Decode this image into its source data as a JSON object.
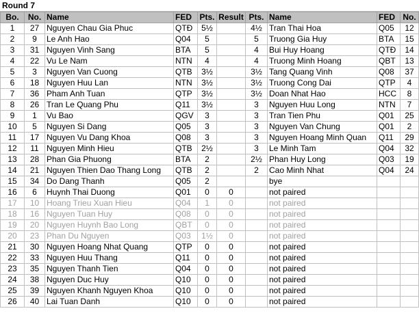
{
  "header": {
    "title": "Round 7"
  },
  "table": {
    "columns": [
      "Bo.",
      "No.",
      "Name",
      "FED",
      "Pts.",
      "Result",
      "Pts.",
      "Name",
      "FED",
      "No."
    ],
    "rows": [
      [
        "1",
        "27",
        "Nguyen Chau Gia Phuc",
        "QTĐ",
        "5½",
        null,
        "4½",
        "Tran Thai Hoa",
        "Q05",
        "12"
      ],
      [
        "2",
        "9",
        "Le Anh Hao",
        "Q04",
        "5",
        null,
        "5",
        "Truong Gia Huy",
        "BTA",
        "15"
      ],
      [
        "3",
        "31",
        "Nguyen Vinh Sang",
        "BTA",
        "5",
        null,
        "4",
        "Bui Huy Hoang",
        "QTĐ",
        "14"
      ],
      [
        "4",
        "22",
        "Vu Le Nam",
        "NTN",
        "4",
        null,
        "4",
        "Truong Minh Hoang",
        "QBT",
        "13"
      ],
      [
        "5",
        "3",
        "Nguyen Van Cuong",
        "QTB",
        "3½",
        null,
        "3½",
        "Tang Quang Vinh",
        "Q08",
        "37"
      ],
      [
        "6",
        "18",
        "Nguyen Huu Lan",
        "NTN",
        "3½",
        null,
        "3½",
        "Truong Cong Dai",
        "QTP",
        "4"
      ],
      [
        "7",
        "36",
        "Pham Anh Tuan",
        "QTP",
        "3½",
        null,
        "3½",
        "Doan Nhat Hao",
        "HCC",
        "8"
      ],
      [
        "8",
        "26",
        "Tran Le Quang Phu",
        "Q11",
        "3½",
        null,
        "3",
        "Nguyen Huu Long",
        "NTN",
        "7"
      ],
      [
        "9",
        "1",
        "Vu Bao",
        "QGV",
        "3",
        null,
        "3",
        "Tran Tien Phu",
        "Q01",
        "25"
      ],
      [
        "10",
        "5",
        "Nguyen Si Dang",
        "Q05",
        "3",
        null,
        "3",
        "Nguyen Van Chung",
        "Q01",
        "2"
      ],
      [
        "11",
        "17",
        "Nguyen Vu Dang Khoa",
        "Q08",
        "3",
        null,
        "3",
        "Nguyen Hoang Minh Quan",
        "Q11",
        "29"
      ],
      [
        "12",
        "11",
        "Nguyen Minh Hieu",
        "QTB",
        "2½",
        null,
        "3",
        "Le Minh Tam",
        "Q04",
        "32"
      ],
      [
        "13",
        "28",
        "Phan Gia Phuong",
        "BTA",
        "2",
        null,
        "2½",
        "Phan Huy Long",
        "Q03",
        "19"
      ],
      [
        "14",
        "21",
        "Nguyen Thien Dao Thang Long",
        "QTB",
        "2",
        null,
        "2",
        "Cao Minh Nhat",
        "Q04",
        "24"
      ],
      [
        "15",
        "34",
        "Do Dang Thanh",
        "Q05",
        "2",
        null,
        null,
        "bye",
        null,
        null
      ],
      [
        "16",
        "6",
        "Huynh Thai Duong",
        "Q01",
        "0",
        "0",
        null,
        "not paired",
        null,
        null
      ],
      [
        "17",
        "10",
        "Hoang Trieu Xuan Hieu",
        "Q04",
        "1",
        "0",
        null,
        "not paired",
        null,
        null
      ],
      [
        "18",
        "16",
        "Nguyen Tuan Huy",
        "Q08",
        "0",
        "0",
        null,
        "not paired",
        null,
        null
      ],
      [
        "19",
        "20",
        "Nguyen Huynh Bao Long",
        "QBT",
        "0",
        "0",
        null,
        "not paired",
        null,
        null
      ],
      [
        "20",
        "23",
        "Phan Du Nguyen",
        "Q03",
        "1½",
        "0",
        null,
        "not paired",
        null,
        null
      ],
      [
        "21",
        "30",
        "Nguyen Hoang Nhat Quang",
        "QTP",
        "0",
        "0",
        null,
        "not paired",
        null,
        null
      ],
      [
        "22",
        "33",
        "Nguyen Huu Thang",
        "Q11",
        "0",
        "0",
        null,
        "not paired",
        null,
        null
      ],
      [
        "23",
        "35",
        "Nguyen Thanh Tien",
        "Q04",
        "0",
        "0",
        null,
        "not paired",
        null,
        null
      ],
      [
        "24",
        "38",
        "Nguyen Duc Huy",
        "Q10",
        "0",
        "0",
        null,
        "not paired",
        null,
        null
      ],
      [
        "25",
        "39",
        "Nguyen Khanh Nguyen Khoa",
        "Q10",
        "0",
        "0",
        null,
        "not paired",
        null,
        null
      ],
      [
        "26",
        "40",
        "Lai Tuan Danh",
        "Q10",
        "0",
        "0",
        null,
        "not paired",
        null,
        null
      ]
    ]
  }
}
